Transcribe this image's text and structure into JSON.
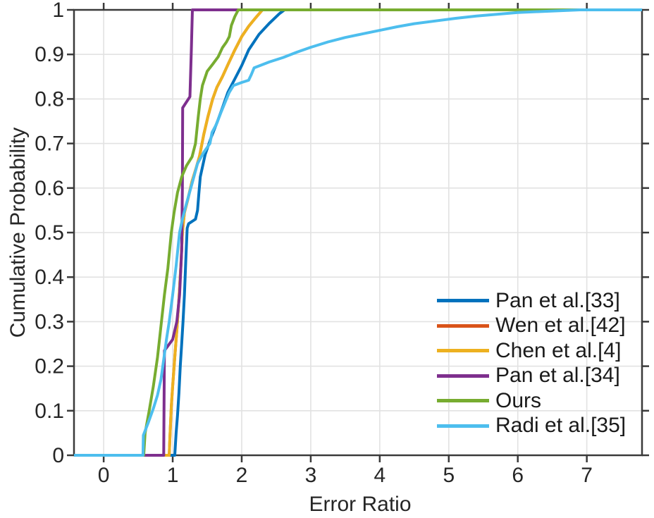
{
  "colors": {
    "background": "#ffffff",
    "axis": "#3a3a3a",
    "grid": "#e2e2e2",
    "tick_text": "#262626"
  },
  "chart_data": {
    "type": "line",
    "title": "",
    "xlabel": "Error Ratio",
    "ylabel": "Cumulative Probability",
    "xlim": [
      -0.43,
      7.8
    ],
    "ylim": [
      0,
      1
    ],
    "x_ticks": [
      0,
      1,
      2,
      3,
      4,
      5,
      6,
      7
    ],
    "x_tick_labels": [
      "0",
      "1",
      "2",
      "3",
      "4",
      "5",
      "6",
      "7"
    ],
    "y_ticks": [
      0,
      0.1,
      0.2,
      0.3,
      0.4,
      0.5,
      0.6,
      0.7,
      0.8,
      0.9,
      1
    ],
    "y_tick_labels": [
      "0",
      "0.1",
      "0.2",
      "0.3",
      "0.4",
      "0.5",
      "0.6",
      "0.7",
      "0.8",
      "0.9",
      "1"
    ],
    "grid": true,
    "legend_position": "lower right",
    "line_width": 4,
    "series": [
      {
        "name": "Pan et al.[33]",
        "color": "#0072BD",
        "points": [
          [
            -0.43,
            0
          ],
          [
            1.03,
            0
          ],
          [
            1.05,
            0.05
          ],
          [
            1.07,
            0.09
          ],
          [
            1.09,
            0.14
          ],
          [
            1.11,
            0.2
          ],
          [
            1.13,
            0.25
          ],
          [
            1.15,
            0.3
          ],
          [
            1.17,
            0.36
          ],
          [
            1.19,
            0.44
          ],
          [
            1.21,
            0.51
          ],
          [
            1.23,
            0.52
          ],
          [
            1.33,
            0.53
          ],
          [
            1.36,
            0.55
          ],
          [
            1.38,
            0.59
          ],
          [
            1.4,
            0.625
          ],
          [
            1.47,
            0.675
          ],
          [
            1.56,
            0.715
          ],
          [
            1.65,
            0.75
          ],
          [
            1.72,
            0.78
          ],
          [
            1.8,
            0.815
          ],
          [
            1.9,
            0.845
          ],
          [
            2.0,
            0.875
          ],
          [
            2.1,
            0.91
          ],
          [
            2.25,
            0.945
          ],
          [
            2.4,
            0.97
          ],
          [
            2.55,
            0.992
          ],
          [
            2.62,
            1.0
          ],
          [
            7.8,
            1.0
          ]
        ]
      },
      {
        "name": "Wen et al.[42]",
        "color": "#D95319",
        "points": [
          [
            -0.43,
            0
          ],
          [
            0.95,
            0
          ],
          [
            0.96,
            0.04
          ],
          [
            0.98,
            0.11
          ],
          [
            1.0,
            0.155
          ],
          [
            1.03,
            0.22
          ],
          [
            1.06,
            0.28
          ],
          [
            1.09,
            0.35
          ],
          [
            1.12,
            0.43
          ],
          [
            1.14,
            0.5
          ],
          [
            1.17,
            0.545
          ],
          [
            1.22,
            0.575
          ],
          [
            1.28,
            0.615
          ],
          [
            1.34,
            0.645
          ],
          [
            1.39,
            0.672
          ],
          [
            1.45,
            0.72
          ],
          [
            1.51,
            0.76
          ],
          [
            1.58,
            0.8
          ],
          [
            1.64,
            0.826
          ],
          [
            1.72,
            0.85
          ],
          [
            1.8,
            0.877
          ],
          [
            1.9,
            0.91
          ],
          [
            2.0,
            0.94
          ],
          [
            2.1,
            0.963
          ],
          [
            2.2,
            0.982
          ],
          [
            2.3,
            1.0
          ],
          [
            7.8,
            1.0
          ]
        ]
      },
      {
        "name": "Chen et al.[4]",
        "color": "#EDB120",
        "points": [
          [
            -0.43,
            0
          ],
          [
            0.95,
            0
          ],
          [
            0.96,
            0.04
          ],
          [
            0.98,
            0.11
          ],
          [
            1.0,
            0.155
          ],
          [
            1.03,
            0.22
          ],
          [
            1.06,
            0.28
          ],
          [
            1.09,
            0.35
          ],
          [
            1.12,
            0.43
          ],
          [
            1.14,
            0.5
          ],
          [
            1.17,
            0.545
          ],
          [
            1.22,
            0.575
          ],
          [
            1.28,
            0.615
          ],
          [
            1.34,
            0.645
          ],
          [
            1.39,
            0.672
          ],
          [
            1.45,
            0.72
          ],
          [
            1.51,
            0.76
          ],
          [
            1.58,
            0.8
          ],
          [
            1.64,
            0.826
          ],
          [
            1.72,
            0.85
          ],
          [
            1.8,
            0.877
          ],
          [
            1.9,
            0.91
          ],
          [
            2.0,
            0.94
          ],
          [
            2.1,
            0.963
          ],
          [
            2.2,
            0.982
          ],
          [
            2.3,
            1.0
          ],
          [
            7.8,
            1.0
          ]
        ]
      },
      {
        "name": "Pan et al.[34]",
        "color": "#7E2F8E",
        "points": [
          [
            -0.43,
            0
          ],
          [
            0.87,
            0
          ],
          [
            0.875,
            0.12
          ],
          [
            0.88,
            0.235
          ],
          [
            1.0,
            0.26
          ],
          [
            1.06,
            0.3
          ],
          [
            1.1,
            0.36
          ],
          [
            1.13,
            0.46
          ],
          [
            1.14,
            0.6
          ],
          [
            1.145,
            0.78
          ],
          [
            1.25,
            0.805
          ],
          [
            1.27,
            0.91
          ],
          [
            1.285,
            1.0
          ],
          [
            7.8,
            1.0
          ]
        ]
      },
      {
        "name": "Ours",
        "color": "#77AC30",
        "points": [
          [
            -0.43,
            0
          ],
          [
            0.58,
            0
          ],
          [
            0.6,
            0.05
          ],
          [
            0.66,
            0.1
          ],
          [
            0.72,
            0.155
          ],
          [
            0.78,
            0.22
          ],
          [
            0.83,
            0.29
          ],
          [
            0.88,
            0.36
          ],
          [
            0.93,
            0.42
          ],
          [
            0.98,
            0.5
          ],
          [
            1.02,
            0.545
          ],
          [
            1.07,
            0.59
          ],
          [
            1.13,
            0.625
          ],
          [
            1.2,
            0.65
          ],
          [
            1.28,
            0.67
          ],
          [
            1.33,
            0.7
          ],
          [
            1.37,
            0.76
          ],
          [
            1.4,
            0.8
          ],
          [
            1.43,
            0.83
          ],
          [
            1.5,
            0.862
          ],
          [
            1.58,
            0.878
          ],
          [
            1.66,
            0.895
          ],
          [
            1.72,
            0.915
          ],
          [
            1.78,
            0.928
          ],
          [
            1.82,
            0.94
          ],
          [
            1.85,
            0.965
          ],
          [
            1.9,
            0.985
          ],
          [
            1.95,
            1.0
          ],
          [
            7.8,
            1.0
          ]
        ]
      },
      {
        "name": "Radi et al.[35]",
        "color": "#4DBEEE",
        "points": [
          [
            -0.43,
            0
          ],
          [
            0.57,
            0
          ],
          [
            0.575,
            0.045
          ],
          [
            0.65,
            0.075
          ],
          [
            0.72,
            0.105
          ],
          [
            0.78,
            0.135
          ],
          [
            0.83,
            0.17
          ],
          [
            0.87,
            0.215
          ],
          [
            0.91,
            0.26
          ],
          [
            0.95,
            0.3
          ],
          [
            1.0,
            0.36
          ],
          [
            1.05,
            0.425
          ],
          [
            1.1,
            0.5
          ],
          [
            1.14,
            0.53
          ],
          [
            1.2,
            0.565
          ],
          [
            1.28,
            0.61
          ],
          [
            1.36,
            0.655
          ],
          [
            1.45,
            0.68
          ],
          [
            1.54,
            0.7
          ],
          [
            1.57,
            0.725
          ],
          [
            1.63,
            0.742
          ],
          [
            1.7,
            0.77
          ],
          [
            1.78,
            0.8
          ],
          [
            1.82,
            0.815
          ],
          [
            1.88,
            0.83
          ],
          [
            2.0,
            0.837
          ],
          [
            2.1,
            0.842
          ],
          [
            2.14,
            0.855
          ],
          [
            2.18,
            0.87
          ],
          [
            2.4,
            0.883
          ],
          [
            2.6,
            0.893
          ],
          [
            2.8,
            0.905
          ],
          [
            3.0,
            0.916
          ],
          [
            3.25,
            0.928
          ],
          [
            3.5,
            0.938
          ],
          [
            3.75,
            0.946
          ],
          [
            4.0,
            0.954
          ],
          [
            4.25,
            0.962
          ],
          [
            4.5,
            0.969
          ],
          [
            4.8,
            0.975
          ],
          [
            5.1,
            0.981
          ],
          [
            5.4,
            0.986
          ],
          [
            5.7,
            0.99
          ],
          [
            6.0,
            0.994
          ],
          [
            6.3,
            0.996
          ],
          [
            6.6,
            0.998
          ],
          [
            6.9,
            1.0
          ],
          [
            7.8,
            1.0
          ]
        ]
      }
    ]
  }
}
